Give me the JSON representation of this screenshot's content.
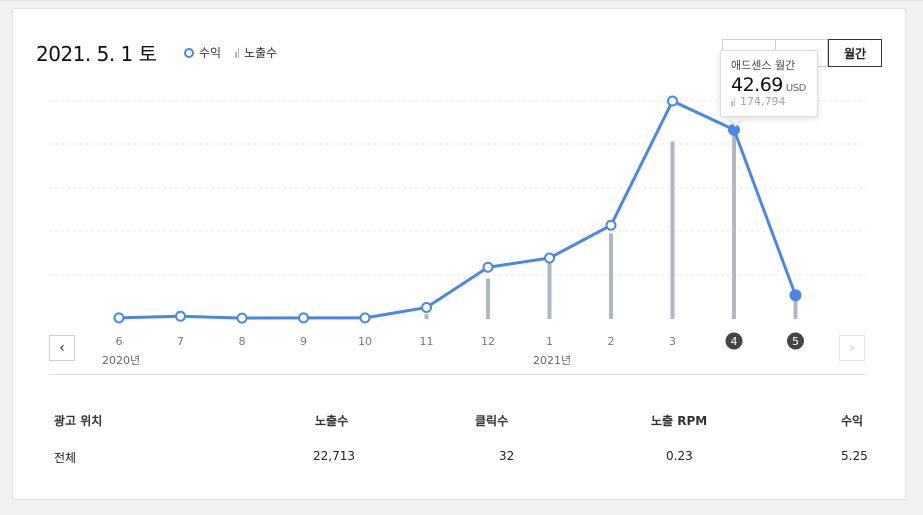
{
  "header": {
    "date": "2021. 5. 1 토",
    "legend": [
      {
        "label": "수익",
        "icon": "circle-marker-icon"
      },
      {
        "label": "노출수",
        "icon": "bar-marker-icon"
      }
    ],
    "period_buttons": [
      "",
      "",
      "월간"
    ]
  },
  "tooltip": {
    "title": "애드센스 월간",
    "value": "42.69",
    "unit": "USD",
    "impressions": "174,794"
  },
  "chart_data": {
    "type": "line",
    "categories": [
      "6",
      "7",
      "8",
      "9",
      "10",
      "11",
      "12",
      "1",
      "2",
      "3",
      "4",
      "5"
    ],
    "year_labels": [
      {
        "label": "2020년",
        "index": 0
      },
      {
        "label": "2021년",
        "index": 7
      }
    ],
    "selected_categories": [
      "4",
      "5"
    ],
    "series": [
      {
        "name": "수익",
        "type": "line",
        "color": "#4a86e8",
        "values": [
          0.5,
          1.2,
          0.4,
          0.5,
          0.5,
          5.1,
          22.9,
          27.0,
          41.5,
          96.5,
          83.8,
          10.5
        ]
      },
      {
        "name": "노출수",
        "type": "bar",
        "color": "#aeb7c4",
        "values": [
          0,
          0,
          0,
          0,
          0,
          3200,
          26000,
          42000,
          55000,
          114000,
          128000,
          18000
        ]
      }
    ],
    "grid": true
  },
  "nav": {
    "prev": "‹",
    "next": "›"
  },
  "table": {
    "headers": [
      "광고 위치",
      "노출수",
      "클릭수",
      "노출 RPM",
      "수익"
    ],
    "rows": [
      [
        "전체",
        "22,713",
        "32",
        "0.23",
        "5.25"
      ]
    ]
  }
}
